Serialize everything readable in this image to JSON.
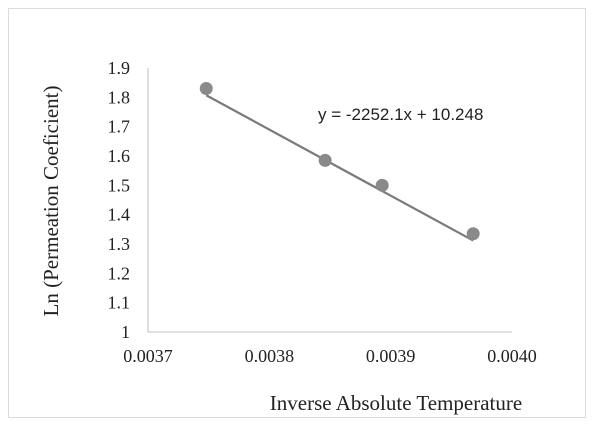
{
  "chart_data": {
    "type": "scatter",
    "xlabel": "Inverse Absolute Temperature",
    "ylabel": "Ln (Permeation Coeficient)",
    "xlim": [
      0.0037,
      0.004
    ],
    "ylim": [
      1,
      1.9
    ],
    "xticks": [
      "0.0037",
      "0.0038",
      "0.0039",
      "0.0040"
    ],
    "yticks": [
      "1",
      "1.1",
      "1.2",
      "1.3",
      "1.4",
      "1.5",
      "1.6",
      "1.7",
      "1.8",
      "1.9"
    ],
    "points": [
      {
        "x": 0.003748,
        "y": 1.83
      },
      {
        "x": 0.003846,
        "y": 1.585
      },
      {
        "x": 0.003893,
        "y": 1.5
      },
      {
        "x": 0.003968,
        "y": 1.335
      }
    ],
    "trendline": {
      "slope": -2252.1,
      "intercept": 10.248,
      "x_range": [
        0.003748,
        0.003968
      ],
      "equation": "y = -2252.1x + 10.248"
    },
    "grid": false,
    "colors": {
      "marker": "#8a8a8a",
      "line": "#7a7a7a",
      "axis": "#bfbfbf"
    }
  }
}
